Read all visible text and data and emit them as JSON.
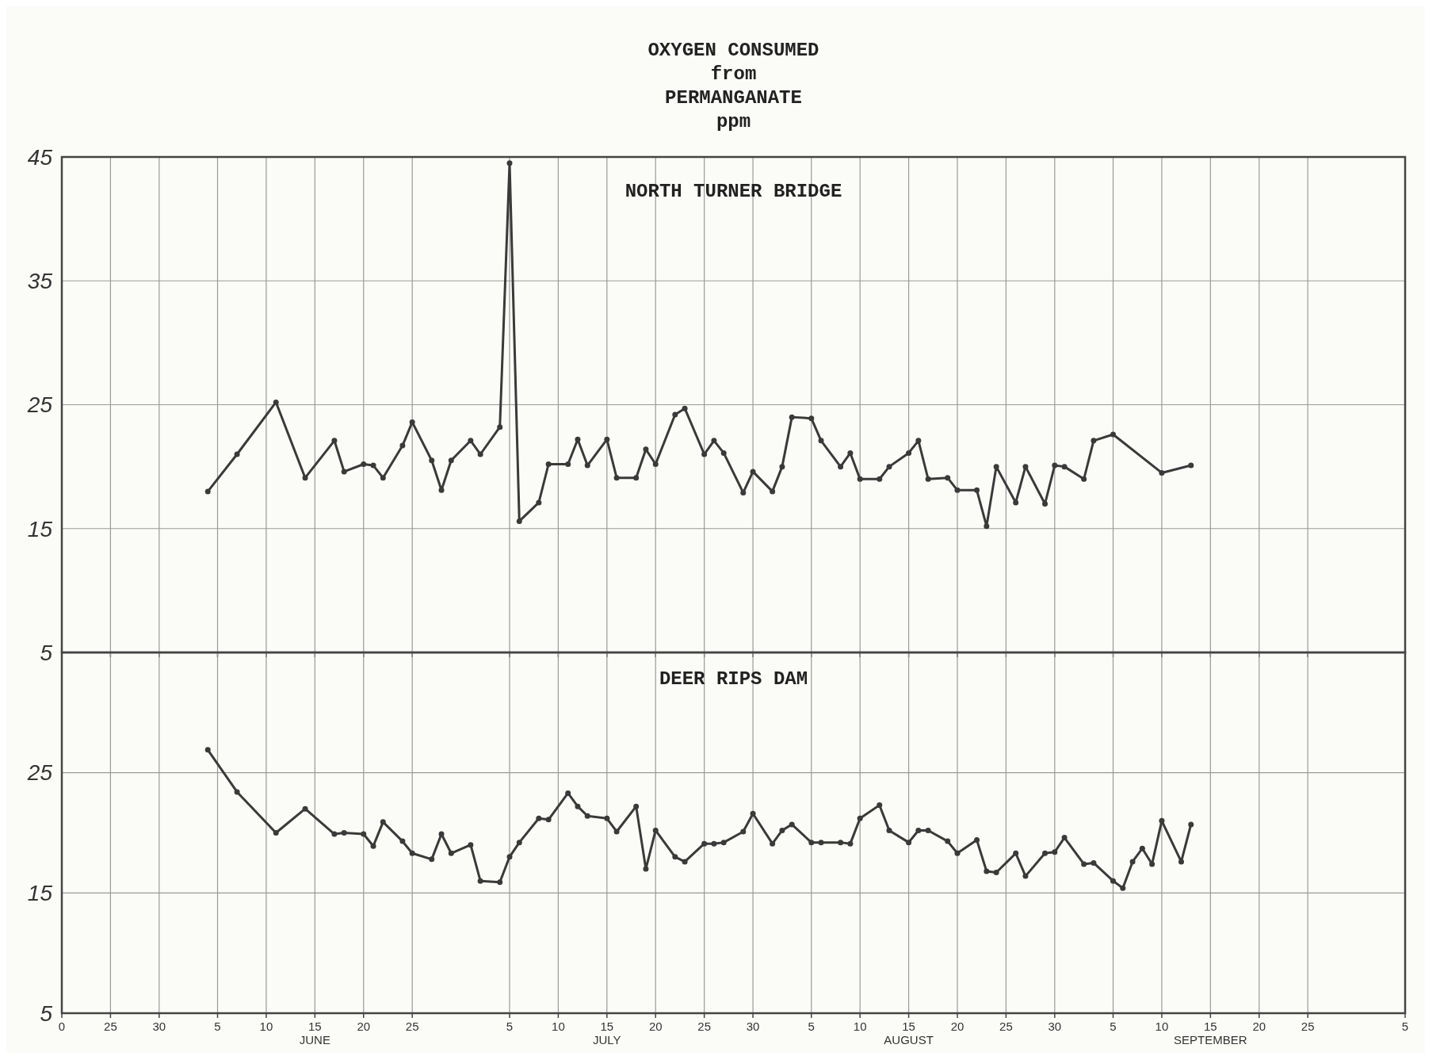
{
  "chart_data": [
    {
      "type": "line",
      "title": "OXYGEN CONSUMED\nfrom\nPERMANGANATE\nppm",
      "subtitle": "NORTH TURNER BRIDGE",
      "xlim": [
        "--05-20",
        "--10-05"
      ],
      "xticks": [
        {
          "value": "--05-20",
          "label": null
        },
        {
          "value": "--05-25",
          "label": null
        },
        {
          "value": "--05-30",
          "label": null
        },
        {
          "value": "--06-05",
          "label": null
        },
        {
          "value": "--06-10",
          "label": null
        },
        {
          "value": "--06-15",
          "label": null
        },
        {
          "value": "--06-20",
          "label": null
        },
        {
          "value": "--06-25",
          "label": null
        },
        {
          "value": "--07-05",
          "label": null
        },
        {
          "value": "--07-10",
          "label": null
        },
        {
          "value": "--07-15",
          "label": null
        },
        {
          "value": "--07-20",
          "label": null
        },
        {
          "value": "--07-25",
          "label": null
        },
        {
          "value": "--07-30",
          "label": null
        },
        {
          "value": "--08-05",
          "label": null
        },
        {
          "value": "--08-10",
          "label": null
        },
        {
          "value": "--08-15",
          "label": null
        },
        {
          "value": "--08-20",
          "label": null
        },
        {
          "value": "--08-25",
          "label": null
        },
        {
          "value": "--08-30",
          "label": null
        },
        {
          "value": "--09-05",
          "label": null
        },
        {
          "value": "--09-10",
          "label": null
        },
        {
          "value": "--09-15",
          "label": null
        },
        {
          "value": "--09-20",
          "label": null
        },
        {
          "value": "--09-25",
          "label": null
        },
        {
          "value": "--10-05",
          "label": null
        }
      ],
      "ylim": [
        5,
        45
      ],
      "yticks": [
        5,
        15,
        25,
        35,
        45
      ],
      "tick_labels": "y",
      "grid": true,
      "marker": "circle",
      "line_style": "solid",
      "series": [
        {
          "color": "#3a3a3a",
          "x": [
            "--06-04",
            "--06-07",
            "--06-11",
            "--06-14",
            "--06-17",
            "--06-18",
            "--06-20",
            "--06-21",
            "--06-22",
            "--06-24",
            "--06-25",
            "--06-27",
            "--06-28",
            "--06-29",
            "--07-01",
            "--07-02",
            "--07-04",
            "--07-05",
            "--07-06",
            "--07-08",
            "--07-09",
            "--07-11",
            "--07-12",
            "--07-13",
            "--07-15",
            "--07-16",
            "--07-18",
            "--07-19",
            "--07-20",
            "--07-22",
            "--07-23",
            "--07-25",
            "--07-26",
            "--07-27",
            "--07-29",
            "--07-30",
            "--08-01",
            "--08-02",
            "--08-03",
            "--08-05",
            "--08-06",
            "--08-08",
            "--08-09",
            "--08-10",
            "--08-12",
            "--08-13",
            "--08-15",
            "--08-16",
            "--08-17",
            "--08-19",
            "--08-20",
            "--08-22",
            "--08-23",
            "--08-24",
            "--08-26",
            "--08-27",
            "--08-29",
            "--08-30",
            "--08-31",
            "--09-02",
            "--09-03",
            "--09-05",
            "--09-10",
            "--09-13"
          ],
          "values": [
            18.0,
            21.0,
            25.2,
            19.1,
            22.1,
            19.6,
            20.2,
            20.1,
            19.1,
            21.7,
            23.6,
            20.5,
            18.1,
            20.5,
            22.1,
            21.0,
            23.2,
            44.5,
            15.6,
            17.1,
            20.2,
            20.2,
            22.2,
            20.1,
            22.2,
            19.1,
            19.1,
            21.4,
            20.2,
            24.2,
            24.7,
            21.0,
            22.1,
            21.1,
            17.9,
            19.6,
            18.0,
            20.0,
            24.0,
            23.9,
            22.1,
            20.0,
            21.1,
            19.0,
            19.0,
            20.0,
            21.1,
            22.1,
            19.0,
            19.1,
            18.1,
            18.1,
            15.2,
            20.0,
            17.1,
            20.0,
            17.0,
            20.1,
            20.0,
            19.0,
            22.1,
            22.6,
            19.5,
            20.1
          ]
        }
      ]
    },
    {
      "type": "line",
      "title": "DEER RIPS DAM",
      "xlim": [
        "--05-20",
        "--10-05"
      ],
      "xticks": [
        {
          "value": "--05-20",
          "label": "0"
        },
        {
          "value": "--05-25",
          "label": "25"
        },
        {
          "value": "--05-30",
          "label": "30"
        },
        {
          "value": "--06-05",
          "label": "5"
        },
        {
          "value": "--06-10",
          "label": "10"
        },
        {
          "value": "--06-15",
          "label": "15\nJUNE"
        },
        {
          "value": "--06-20",
          "label": "20"
        },
        {
          "value": "--06-25",
          "label": "25"
        },
        {
          "value": "--07-05",
          "label": "5"
        },
        {
          "value": "--07-10",
          "label": "10"
        },
        {
          "value": "--07-15",
          "label": "15\nJULY"
        },
        {
          "value": "--07-20",
          "label": "20"
        },
        {
          "value": "--07-25",
          "label": "25"
        },
        {
          "value": "--07-30",
          "label": "30"
        },
        {
          "value": "--08-05",
          "label": "5"
        },
        {
          "value": "--08-10",
          "label": "10"
        },
        {
          "value": "--08-15",
          "label": "15\nAUGUST"
        },
        {
          "value": "--08-20",
          "label": "20"
        },
        {
          "value": "--08-25",
          "label": "25"
        },
        {
          "value": "--08-30",
          "label": "30"
        },
        {
          "value": "--09-05",
          "label": "5"
        },
        {
          "value": "--09-10",
          "label": "10"
        },
        {
          "value": "--09-15",
          "label": "15\nSEPTEMBER"
        },
        {
          "value": "--09-20",
          "label": "20"
        },
        {
          "value": "--09-25",
          "label": "25"
        },
        {
          "value": "--10-05",
          "label": "5"
        }
      ],
      "ylim": [
        5,
        35
      ],
      "yticks": [
        5,
        15,
        25
      ],
      "grid": true,
      "marker": "circle",
      "line_style": "solid",
      "series": [
        {
          "color": "#3a3a3a",
          "x": [
            "--06-04",
            "--06-07",
            "--06-11",
            "--06-14",
            "--06-17",
            "--06-18",
            "--06-20",
            "--06-21",
            "--06-22",
            "--06-24",
            "--06-25",
            "--06-27",
            "--06-28",
            "--06-29",
            "--07-01",
            "--07-02",
            "--07-04",
            "--07-05",
            "--07-06",
            "--07-08",
            "--07-09",
            "--07-11",
            "--07-12",
            "--07-13",
            "--07-15",
            "--07-16",
            "--07-18",
            "--07-19",
            "--07-20",
            "--07-22",
            "--07-23",
            "--07-25",
            "--07-26",
            "--07-27",
            "--07-29",
            "--07-30",
            "--08-01",
            "--08-02",
            "--08-03",
            "--08-05",
            "--08-06",
            "--08-08",
            "--08-09",
            "--08-10",
            "--08-12",
            "--08-13",
            "--08-15",
            "--08-16",
            "--08-17",
            "--08-19",
            "--08-20",
            "--08-22",
            "--08-23",
            "--08-24",
            "--08-26",
            "--08-27",
            "--08-29",
            "--08-30",
            "--08-31",
            "--09-02",
            "--09-03",
            "--09-05",
            "--09-06",
            "--09-07",
            "--09-08",
            "--09-09",
            "--09-10",
            "--09-12",
            "--09-13"
          ],
          "values": [
            26.9,
            23.4,
            20.0,
            22.0,
            19.9,
            20.0,
            19.9,
            18.9,
            20.9,
            19.3,
            18.3,
            17.8,
            19.9,
            18.3,
            19.0,
            16.0,
            15.9,
            18.0,
            19.2,
            21.2,
            21.1,
            23.3,
            22.2,
            21.4,
            21.2,
            20.1,
            22.2,
            17.0,
            20.2,
            18.0,
            17.6,
            19.1,
            19.1,
            19.2,
            20.1,
            21.6,
            19.1,
            20.2,
            20.7,
            19.2,
            19.2,
            19.2,
            19.1,
            21.2,
            22.3,
            20.2,
            19.2,
            20.2,
            20.2,
            19.3,
            18.3,
            19.4,
            16.8,
            16.7,
            18.3,
            16.4,
            18.3,
            18.4,
            19.6,
            17.4,
            17.5,
            16.0,
            15.4,
            17.6,
            18.7,
            17.4,
            21.0,
            17.6,
            20.7
          ]
        }
      ]
    }
  ]
}
